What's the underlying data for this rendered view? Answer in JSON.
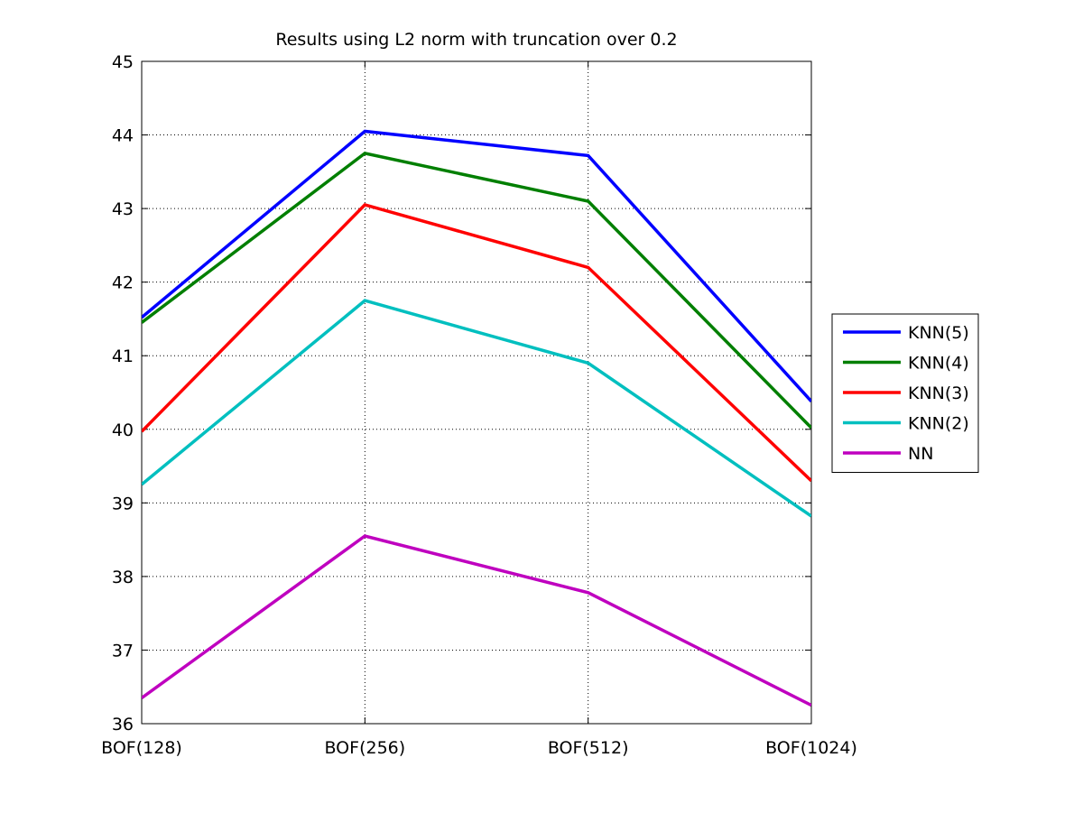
{
  "chart_data": {
    "type": "line",
    "title": "Results using L2 norm with truncation over 0.2",
    "xlabel": "",
    "ylabel": "",
    "categories": [
      "BOF(128)",
      "BOF(256)",
      "BOF(512)",
      "BOF(1024)"
    ],
    "ylim": [
      36,
      45
    ],
    "yticks": [
      "36",
      "37",
      "38",
      "39",
      "40",
      "41",
      "42",
      "43",
      "44",
      "45"
    ],
    "grid": true,
    "legend_position": "right",
    "series": [
      {
        "name": "KNN(5)",
        "color": "#0000ff",
        "values": [
          41.52,
          44.05,
          43.72,
          40.38
        ]
      },
      {
        "name": "KNN(4)",
        "color": "#007f00",
        "values": [
          41.45,
          43.75,
          43.1,
          40.02
        ]
      },
      {
        "name": "KNN(3)",
        "color": "#ff0000",
        "values": [
          39.97,
          43.05,
          42.2,
          39.3
        ]
      },
      {
        "name": "KNN(2)",
        "color": "#00bfbf",
        "values": [
          39.25,
          41.75,
          40.9,
          38.82
        ]
      },
      {
        "name": "NN",
        "color": "#bf00bf",
        "values": [
          36.35,
          38.55,
          37.78,
          36.25
        ]
      }
    ]
  }
}
